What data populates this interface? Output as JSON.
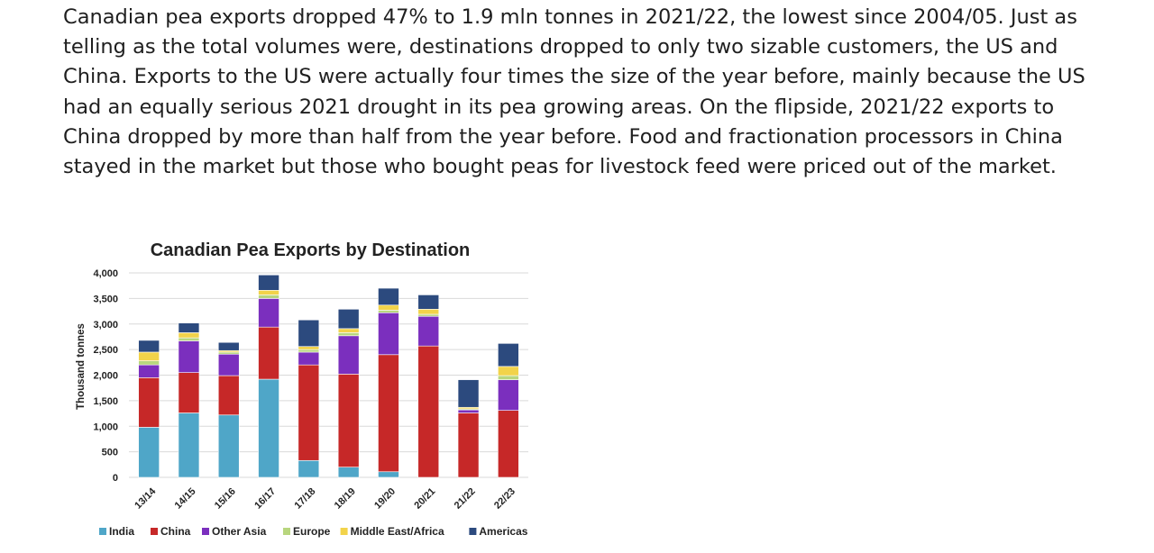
{
  "article": {
    "paragraph": "Canadian pea exports dropped 47% to 1.9 mln tonnes in 2021/22, the lowest since 2004/05. Just as telling as the total volumes were, destinations dropped to only two sizable customers, the US and China. Exports to the US were actually four times the size of the year before, mainly because the US had an equally serious 2021 drought in its pea growing areas. On the flipside, 2021/22 exports to China dropped by more than half from the year before. Food and fractionation processors in China stayed in the market but those who bought peas for livestock feed were priced out of the market."
  },
  "chart_data": {
    "type": "bar",
    "stacked": true,
    "title": "Canadian Pea Exports by Destination",
    "xlabel": "",
    "ylabel": "Thousand tonnes",
    "ylim": [
      0,
      4000
    ],
    "yticks": [
      0,
      500,
      1000,
      1500,
      2000,
      2500,
      3000,
      3500,
      4000
    ],
    "ytick_labels": [
      "0",
      "500",
      "1,000",
      "1,500",
      "2,000",
      "2,500",
      "3,000",
      "3,500",
      "4,000"
    ],
    "grid": true,
    "legend_position": "bottom",
    "categories": [
      "13/14",
      "14/15",
      "15/16",
      "16/17",
      "17/18",
      "18/19",
      "19/20",
      "20/21",
      "21/22",
      "22/23"
    ],
    "series": [
      {
        "name": "India",
        "color": "#4fa6c8",
        "values": [
          980,
          1260,
          1220,
          1920,
          330,
          200,
          110,
          0,
          0,
          0
        ]
      },
      {
        "name": "China",
        "color": "#c62828",
        "values": [
          970,
          790,
          770,
          1020,
          1870,
          1820,
          2290,
          2570,
          1260,
          1310
        ]
      },
      {
        "name": "Other Asia",
        "color": "#7b2fbe",
        "values": [
          250,
          620,
          420,
          560,
          250,
          750,
          820,
          580,
          60,
          600
        ]
      },
      {
        "name": "Europe",
        "color": "#b8d67e",
        "values": [
          80,
          60,
          40,
          70,
          50,
          60,
          50,
          40,
          20,
          80
        ]
      },
      {
        "name": "Middle East/Africa",
        "color": "#f2d34a",
        "values": [
          170,
          100,
          30,
          90,
          60,
          80,
          100,
          100,
          30,
          180
        ]
      },
      {
        "name": "Americas",
        "color": "#2c4a7e",
        "values": [
          230,
          190,
          160,
          300,
          520,
          380,
          330,
          280,
          540,
          450
        ]
      }
    ]
  }
}
